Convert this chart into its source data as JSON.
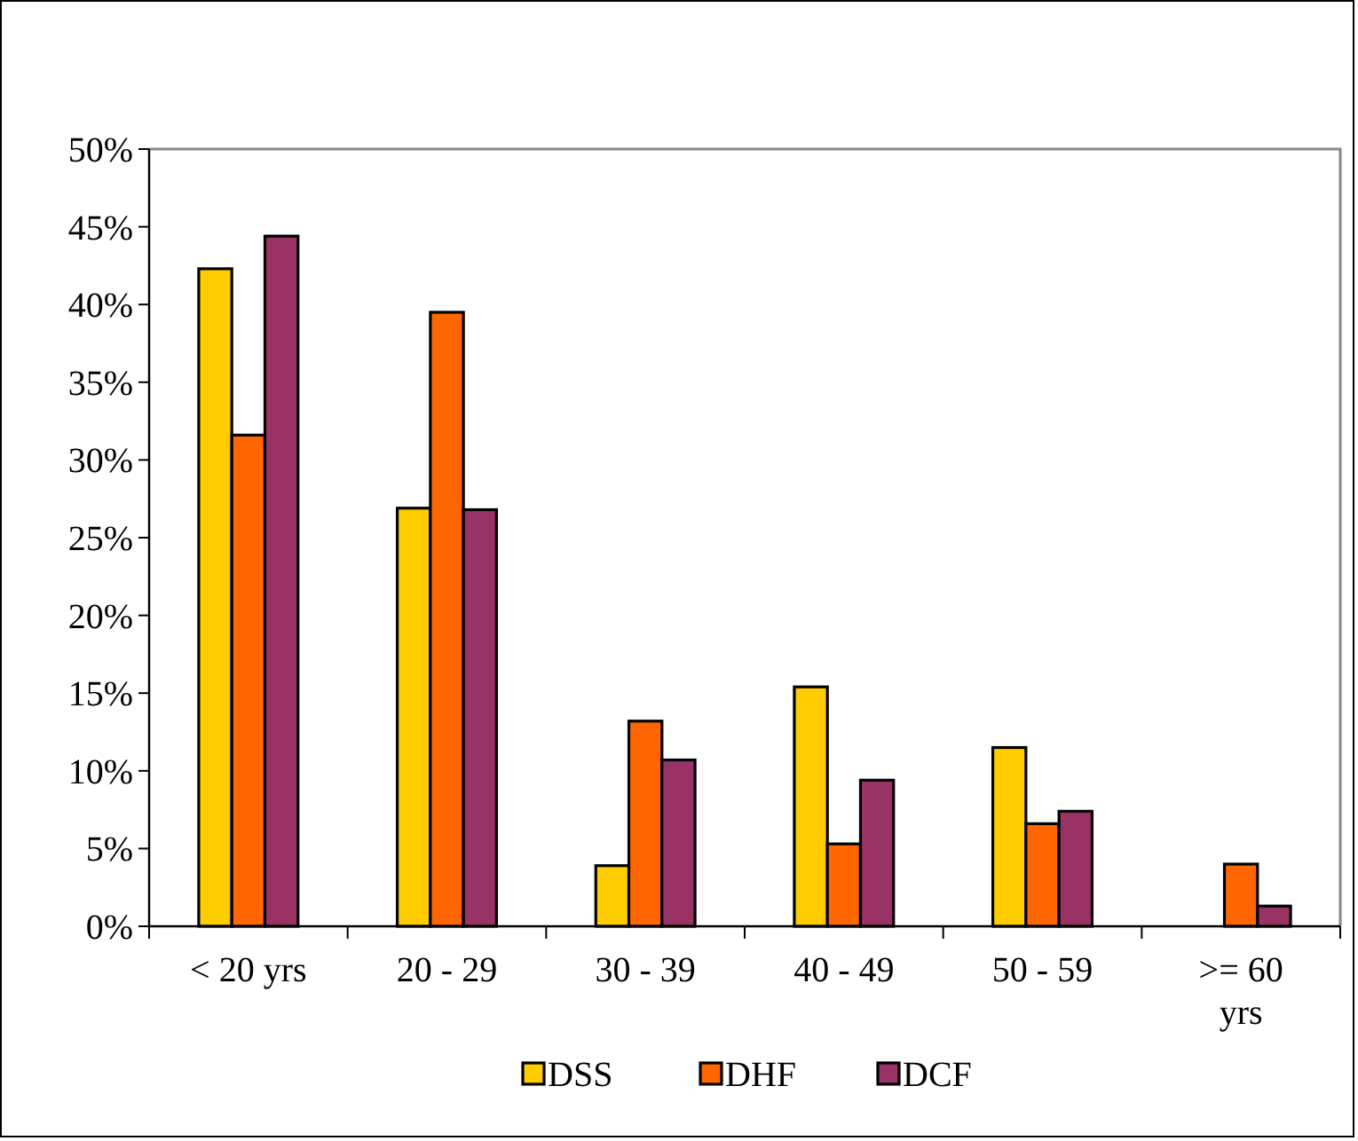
{
  "chart_data": {
    "type": "bar",
    "categories": [
      "< 20 yrs",
      "20 - 29",
      "30 - 39",
      "40 - 49",
      "50 - 59",
      ">= 60 yrs"
    ],
    "series": [
      {
        "name": "DSS",
        "color": "#ffcc00",
        "values": [
          42.3,
          26.9,
          3.9,
          15.4,
          11.5,
          null
        ]
      },
      {
        "name": "DHF",
        "color": "#ff6600",
        "values": [
          31.6,
          39.5,
          13.2,
          5.3,
          6.6,
          4.0
        ]
      },
      {
        "name": "DCF",
        "color": "#993366",
        "values": [
          44.4,
          26.8,
          10.7,
          9.4,
          7.4,
          1.3
        ]
      }
    ],
    "ylim": [
      0,
      50
    ],
    "yticks": [
      {
        "value": 0,
        "label": "0%"
      },
      {
        "value": 5,
        "label": "5%"
      },
      {
        "value": 10,
        "label": "10%"
      },
      {
        "value": 15,
        "label": "15%"
      },
      {
        "value": 20,
        "label": "20%"
      },
      {
        "value": 25,
        "label": "25%"
      },
      {
        "value": 30,
        "label": "30%"
      },
      {
        "value": 35,
        "label": "35%"
      },
      {
        "value": 40,
        "label": "40%"
      },
      {
        "value": 45,
        "label": "45%"
      },
      {
        "value": 50,
        "label": "50%"
      }
    ],
    "grid": false,
    "legend": "bottom"
  }
}
